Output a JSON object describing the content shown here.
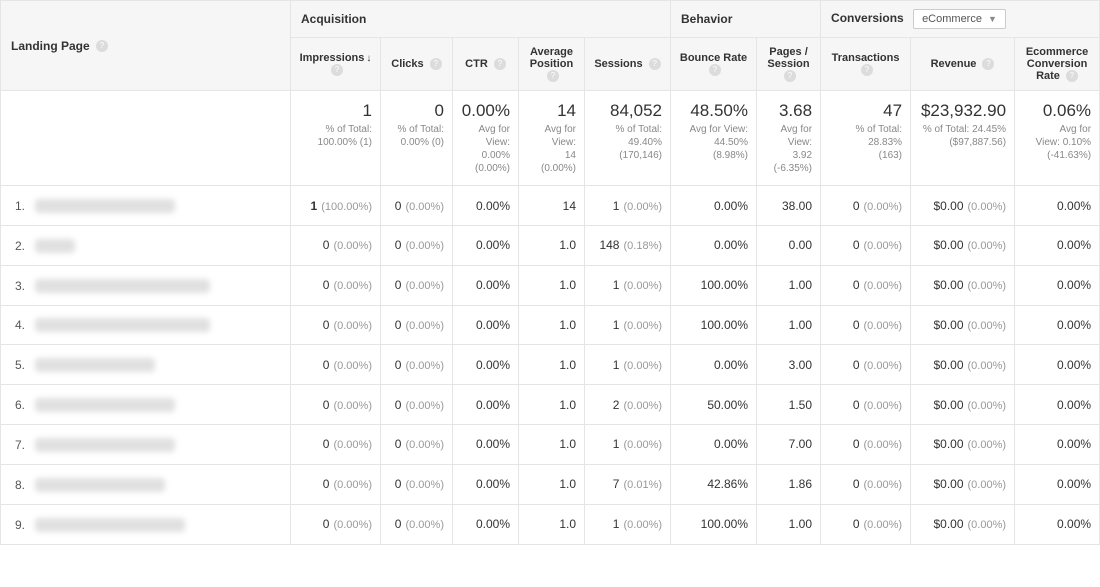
{
  "groups": {
    "landing": "Landing Page",
    "acquisition": "Acquisition",
    "behavior": "Behavior",
    "conversions": "Conversions",
    "conversions_select": "eCommerce"
  },
  "cols": {
    "impressions": "Impressions",
    "clicks": "Clicks",
    "ctr": "CTR",
    "avgpos": "Average Position",
    "sessions": "Sessions",
    "bounce": "Bounce Rate",
    "pages": "Pages / Session",
    "trans": "Transactions",
    "revenue": "Revenue",
    "ecr": "Ecommerce Conversion Rate"
  },
  "summary": {
    "impressions": {
      "main": "1",
      "sub1": "% of Total:",
      "sub2": "100.00% (1)"
    },
    "clicks": {
      "main": "0",
      "sub1": "% of Total:",
      "sub2": "0.00% (0)"
    },
    "ctr": {
      "main": "0.00%",
      "sub1": "Avg for",
      "sub2": "View:",
      "sub3": "0.00%",
      "sub4": "(0.00%)"
    },
    "avgpos": {
      "main": "14",
      "sub1": "Avg for",
      "sub2": "View:",
      "sub3": "14",
      "sub4": "(0.00%)"
    },
    "sessions": {
      "main": "84,052",
      "sub1": "% of Total:",
      "sub2": "49.40%",
      "sub3": "(170,146)"
    },
    "bounce": {
      "main": "48.50%",
      "sub1": "Avg for View:",
      "sub2": "44.50%",
      "sub3": "(8.98%)"
    },
    "pages": {
      "main": "3.68",
      "sub1": "Avg for",
      "sub2": "View:",
      "sub3": "3.92",
      "sub4": "(-6.35%)"
    },
    "trans": {
      "main": "47",
      "sub1": "% of Total:",
      "sub2": "28.83%",
      "sub3": "(163)"
    },
    "revenue": {
      "main": "$23,932.90",
      "sub1": "% of Total: 24.45%",
      "sub2": "($97,887.56)"
    },
    "ecr": {
      "main": "0.06%",
      "sub1": "Avg for",
      "sub2": "View: 0.10%",
      "sub3": "(-41.63%)"
    }
  },
  "rows": [
    {
      "n": "1.",
      "blur": 140,
      "imp": "1",
      "imp_pct": "(100.00%)",
      "clk": "0",
      "clk_pct": "(0.00%)",
      "ctr": "0.00%",
      "pos": "14",
      "sess": "1",
      "sess_pct": "(0.00%)",
      "bounce": "0.00%",
      "pps": "38.00",
      "trans": "0",
      "trans_pct": "(0.00%)",
      "rev": "$0.00",
      "rev_pct": "(0.00%)",
      "ecr": "0.00%"
    },
    {
      "n": "2.",
      "blur": 40,
      "imp": "0",
      "imp_pct": "(0.00%)",
      "clk": "0",
      "clk_pct": "(0.00%)",
      "ctr": "0.00%",
      "pos": "1.0",
      "sess": "148",
      "sess_pct": "(0.18%)",
      "bounce": "0.00%",
      "pps": "0.00",
      "trans": "0",
      "trans_pct": "(0.00%)",
      "rev": "$0.00",
      "rev_pct": "(0.00%)",
      "ecr": "0.00%"
    },
    {
      "n": "3.",
      "blur": 175,
      "imp": "0",
      "imp_pct": "(0.00%)",
      "clk": "0",
      "clk_pct": "(0.00%)",
      "ctr": "0.00%",
      "pos": "1.0",
      "sess": "1",
      "sess_pct": "(0.00%)",
      "bounce": "100.00%",
      "pps": "1.00",
      "trans": "0",
      "trans_pct": "(0.00%)",
      "rev": "$0.00",
      "rev_pct": "(0.00%)",
      "ecr": "0.00%"
    },
    {
      "n": "4.",
      "blur": 175,
      "imp": "0",
      "imp_pct": "(0.00%)",
      "clk": "0",
      "clk_pct": "(0.00%)",
      "ctr": "0.00%",
      "pos": "1.0",
      "sess": "1",
      "sess_pct": "(0.00%)",
      "bounce": "100.00%",
      "pps": "1.00",
      "trans": "0",
      "trans_pct": "(0.00%)",
      "rev": "$0.00",
      "rev_pct": "(0.00%)",
      "ecr": "0.00%"
    },
    {
      "n": "5.",
      "blur": 120,
      "imp": "0",
      "imp_pct": "(0.00%)",
      "clk": "0",
      "clk_pct": "(0.00%)",
      "ctr": "0.00%",
      "pos": "1.0",
      "sess": "1",
      "sess_pct": "(0.00%)",
      "bounce": "0.00%",
      "pps": "3.00",
      "trans": "0",
      "trans_pct": "(0.00%)",
      "rev": "$0.00",
      "rev_pct": "(0.00%)",
      "ecr": "0.00%"
    },
    {
      "n": "6.",
      "blur": 140,
      "imp": "0",
      "imp_pct": "(0.00%)",
      "clk": "0",
      "clk_pct": "(0.00%)",
      "ctr": "0.00%",
      "pos": "1.0",
      "sess": "2",
      "sess_pct": "(0.00%)",
      "bounce": "50.00%",
      "pps": "1.50",
      "trans": "0",
      "trans_pct": "(0.00%)",
      "rev": "$0.00",
      "rev_pct": "(0.00%)",
      "ecr": "0.00%"
    },
    {
      "n": "7.",
      "blur": 140,
      "imp": "0",
      "imp_pct": "(0.00%)",
      "clk": "0",
      "clk_pct": "(0.00%)",
      "ctr": "0.00%",
      "pos": "1.0",
      "sess": "1",
      "sess_pct": "(0.00%)",
      "bounce": "0.00%",
      "pps": "7.00",
      "trans": "0",
      "trans_pct": "(0.00%)",
      "rev": "$0.00",
      "rev_pct": "(0.00%)",
      "ecr": "0.00%"
    },
    {
      "n": "8.",
      "blur": 130,
      "imp": "0",
      "imp_pct": "(0.00%)",
      "clk": "0",
      "clk_pct": "(0.00%)",
      "ctr": "0.00%",
      "pos": "1.0",
      "sess": "7",
      "sess_pct": "(0.01%)",
      "bounce": "42.86%",
      "pps": "1.86",
      "trans": "0",
      "trans_pct": "(0.00%)",
      "rev": "$0.00",
      "rev_pct": "(0.00%)",
      "ecr": "0.00%"
    },
    {
      "n": "9.",
      "blur": 150,
      "imp": "0",
      "imp_pct": "(0.00%)",
      "clk": "0",
      "clk_pct": "(0.00%)",
      "ctr": "0.00%",
      "pos": "1.0",
      "sess": "1",
      "sess_pct": "(0.00%)",
      "bounce": "100.00%",
      "pps": "1.00",
      "trans": "0",
      "trans_pct": "(0.00%)",
      "rev": "$0.00",
      "rev_pct": "(0.00%)",
      "ecr": "0.00%"
    }
  ],
  "widths": {
    "landing": 290,
    "impressions": 90,
    "clicks": 72,
    "ctr": 66,
    "avgpos": 66,
    "sessions": 86,
    "bounce": 86,
    "pages": 64,
    "trans": 90,
    "revenue": 104,
    "ecr": 85
  }
}
